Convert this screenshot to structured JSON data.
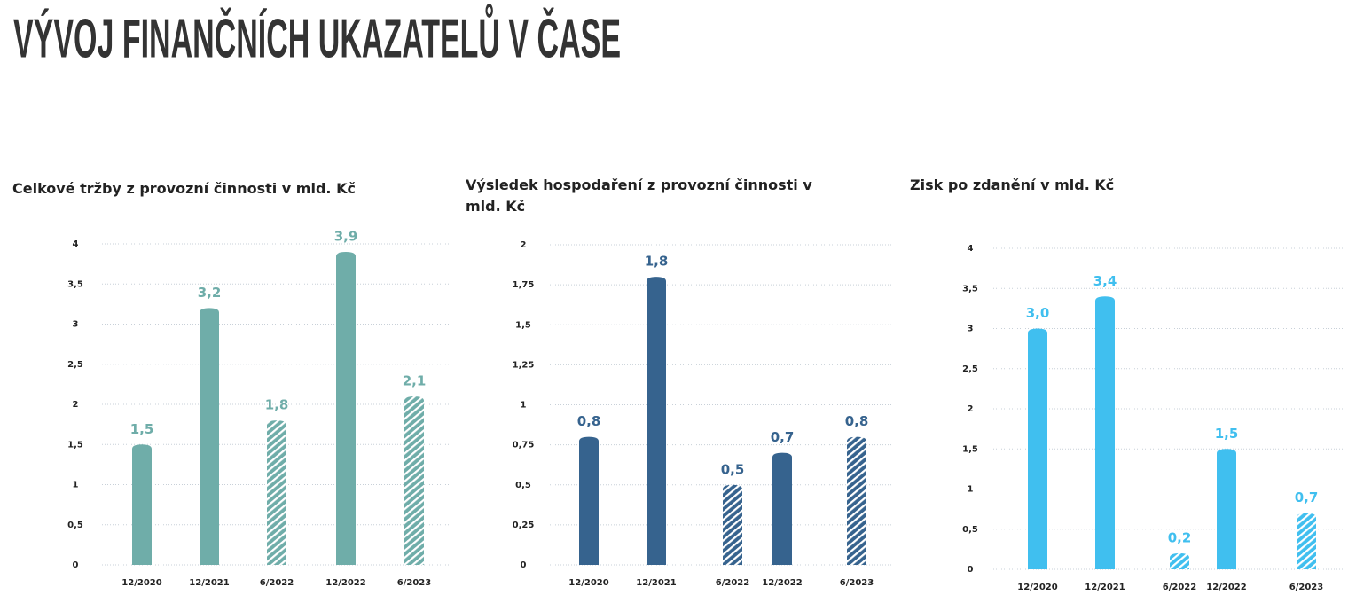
{
  "page_title": "VÝVOJ FINANČNÍCH UKAZATELŮ V ČASE",
  "chart_data": [
    {
      "type": "bar",
      "title": "Celkové tržby z provozní činnosti v mld. Kč",
      "categories": [
        "12/2020",
        "12/2021",
        "6/2022",
        "12/2022",
        "6/2023"
      ],
      "values": [
        1.5,
        3.2,
        1.8,
        3.9,
        2.1
      ],
      "value_labels": [
        "1,5",
        "3,2",
        "1,8",
        "3,9",
        "2,1"
      ],
      "patterns": [
        "solid",
        "solid",
        "hatched",
        "solid",
        "hatched"
      ],
      "color": "#6fada9",
      "grid": true,
      "ylim": [
        0,
        4
      ],
      "yticks": [
        0,
        {
          "value": 0.5,
          "label": "0,5"
        },
        1,
        {
          "value": 1.5,
          "label": "1,5"
        },
        2,
        {
          "value": 2.5,
          "label": "2,5"
        },
        3,
        {
          "value": 3.5,
          "label": "3,5"
        },
        4
      ]
    },
    {
      "type": "bar",
      "title": "Výsledek hospodaření z provozní činnosti v mld. Kč",
      "categories": [
        "12/2020",
        "12/2021",
        "6/2022",
        "12/2022",
        "6/2023"
      ],
      "values": [
        0.8,
        1.8,
        0.5,
        0.7,
        0.8
      ],
      "value_labels": [
        "0,8",
        "1,8",
        "0,5",
        "0,7",
        "0,8"
      ],
      "patterns": [
        "solid",
        "solid",
        "hatched",
        "solid",
        "hatched"
      ],
      "color": "#36638e",
      "grid": true,
      "ylim": [
        0,
        2
      ],
      "yticks": [
        0,
        {
          "value": 0.25,
          "label": "0,25"
        },
        {
          "value": 0.5,
          "label": "0,5"
        },
        {
          "value": 0.75,
          "label": "0,75"
        },
        1,
        {
          "value": 1.25,
          "label": "1,25"
        },
        {
          "value": 1.5,
          "label": "1,5"
        },
        {
          "value": 1.75,
          "label": "1,75"
        },
        2
      ]
    },
    {
      "type": "bar",
      "title": "Zisk po zdanění v mld. Kč",
      "categories": [
        "12/2020",
        "12/2021",
        "6/2022",
        "12/2022",
        "6/2023"
      ],
      "values": [
        3.0,
        3.4,
        0.2,
        1.5,
        0.7
      ],
      "value_labels": [
        "3,0",
        "3,4",
        "0,2",
        "1,5",
        "0,7"
      ],
      "patterns": [
        "solid",
        "solid",
        "hatched",
        "solid",
        "hatched"
      ],
      "color": "#40bfef",
      "grid": true,
      "ylim": [
        0,
        4
      ],
      "yticks": [
        0,
        {
          "value": 0.5,
          "label": "0,5"
        },
        1,
        {
          "value": 1.5,
          "label": "1,5"
        },
        2,
        {
          "value": 2.5,
          "label": "2,5"
        },
        3,
        {
          "value": 3.5,
          "label": "3,5"
        },
        4
      ]
    }
  ]
}
